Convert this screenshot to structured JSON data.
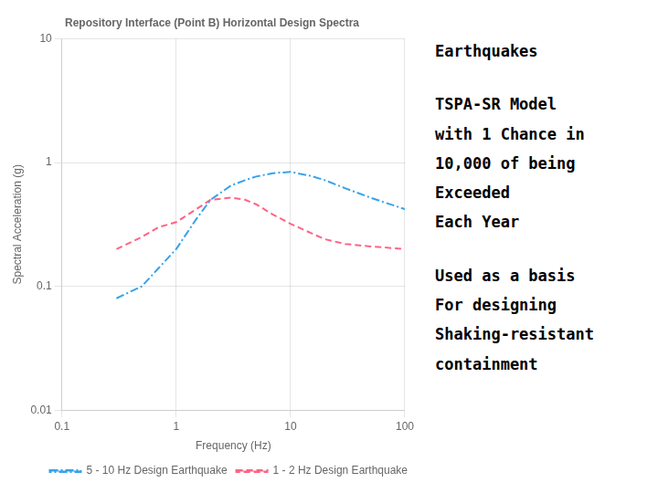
{
  "chart_data": {
    "type": "line",
    "title": "Repository Interface (Point B) Horizontal Design Spectra",
    "x_label": "Frequency (Hz)",
    "y_label": "Spectral Acceleration (g)",
    "log": true,
    "grid": true,
    "legend": "lower right",
    "xlim": [
      0.1,
      100
    ],
    "ylim": [
      0.01,
      10
    ],
    "xticks": [
      0.1,
      1,
      10,
      100
    ],
    "yticks": [
      0.01,
      0.1,
      1,
      10
    ],
    "x": [
      0.3,
      0.5,
      0.7,
      1.0,
      1.5,
      2.0,
      3.0,
      4.0,
      5.0,
      7.0,
      10.0,
      15.0,
      20.0,
      30.0,
      50.0,
      100.0
    ],
    "series": [
      {
        "name": "5 - 10 Hz Design Earthquake",
        "line_style": "dashdot",
        "values": [
          0.08,
          0.1,
          0.14,
          0.2,
          0.35,
          0.5,
          0.65,
          0.72,
          0.77,
          0.82,
          0.84,
          0.78,
          0.72,
          0.62,
          0.52,
          0.42
        ]
      },
      {
        "name": "1 - 2 Hz Design Earthquake",
        "line_style": "dashed",
        "values": [
          0.2,
          0.25,
          0.3,
          0.33,
          0.42,
          0.5,
          0.52,
          0.5,
          0.46,
          0.38,
          0.32,
          0.27,
          0.24,
          0.22,
          0.21,
          0.2
        ]
      }
    ],
    "annotations": [
      [
        "Earthquakes"
      ],
      [
        "TSPA-SR Model",
        "with 1 Chance in",
        "10,000 of being",
        "Exceeded",
        "Each Year"
      ],
      [
        "Used as a basis",
        "For designing",
        "Shaking-resistant",
        "containment"
      ]
    ]
  }
}
